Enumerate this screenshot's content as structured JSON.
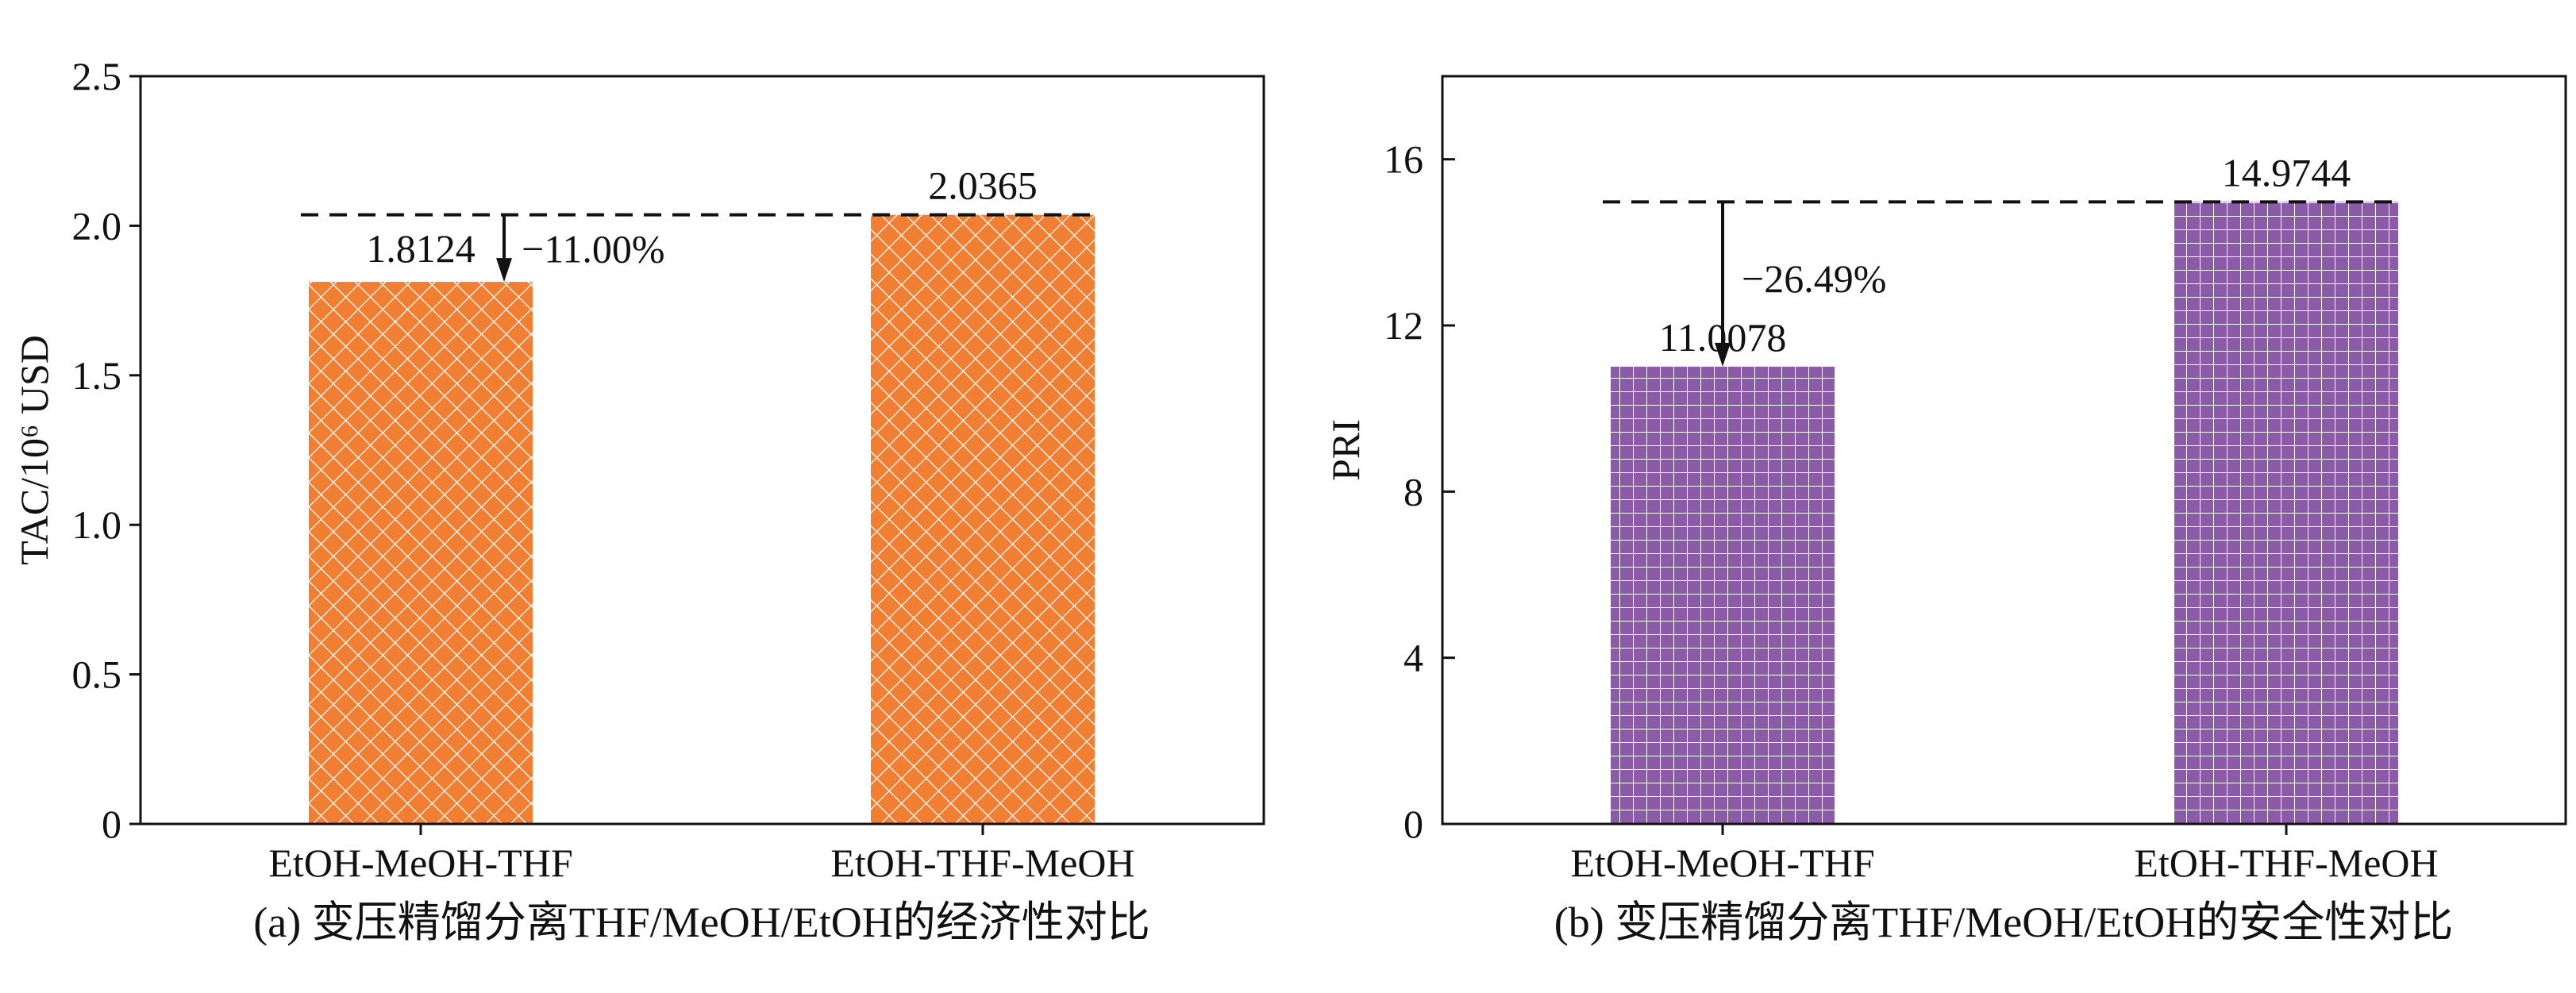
{
  "colors": {
    "panel_a_bar": "#F07F33",
    "panel_b_bar": "#8B5BA8",
    "hatch": "#ffffff",
    "ink": "#111111"
  },
  "chart_data": [
    {
      "type": "bar",
      "panel": "a",
      "caption": "(a) 变压精馏分离THF/MeOH/EtOH的经济性对比",
      "ylabel": "TAC/10⁶ USD",
      "xlabel": "",
      "categories": [
        "EtOH-MeOH-THF",
        "EtOH-THF-MeOH"
      ],
      "values": [
        1.8124,
        2.0365
      ],
      "value_labels": [
        "1.8124",
        "2.0365"
      ],
      "ylim": [
        0,
        2.5
      ],
      "yticks": [
        0,
        0.5,
        1.0,
        1.5,
        2.0,
        2.5
      ],
      "ytick_labels": [
        "0",
        "0.5",
        "1.0",
        "1.5",
        "2.0",
        "2.5"
      ],
      "hatch": "crosshatch",
      "reference_line": {
        "value": 2.0365,
        "style": "dashed"
      },
      "change_annotation": {
        "text": "−11.00%",
        "from": 2.0365,
        "to": 1.8124,
        "category_index": 0
      }
    },
    {
      "type": "bar",
      "panel": "b",
      "caption": "(b) 变压精馏分离THF/MeOH/EtOH的安全性对比",
      "ylabel": "PRI",
      "xlabel": "",
      "categories": [
        "EtOH-MeOH-THF",
        "EtOH-THF-MeOH"
      ],
      "values": [
        11.0078,
        14.9744
      ],
      "value_labels": [
        "11.0078",
        "14.9744"
      ],
      "ylim": [
        0,
        18
      ],
      "yticks": [
        0,
        4,
        8,
        12,
        16
      ],
      "ytick_labels": [
        "0",
        "4",
        "8",
        "12",
        "16"
      ],
      "hatch": "grid",
      "reference_line": {
        "value": 14.9744,
        "style": "dashed"
      },
      "change_annotation": {
        "text": "−26.49%",
        "from": 14.9744,
        "to": 11.0078,
        "category_index": 0
      }
    }
  ]
}
